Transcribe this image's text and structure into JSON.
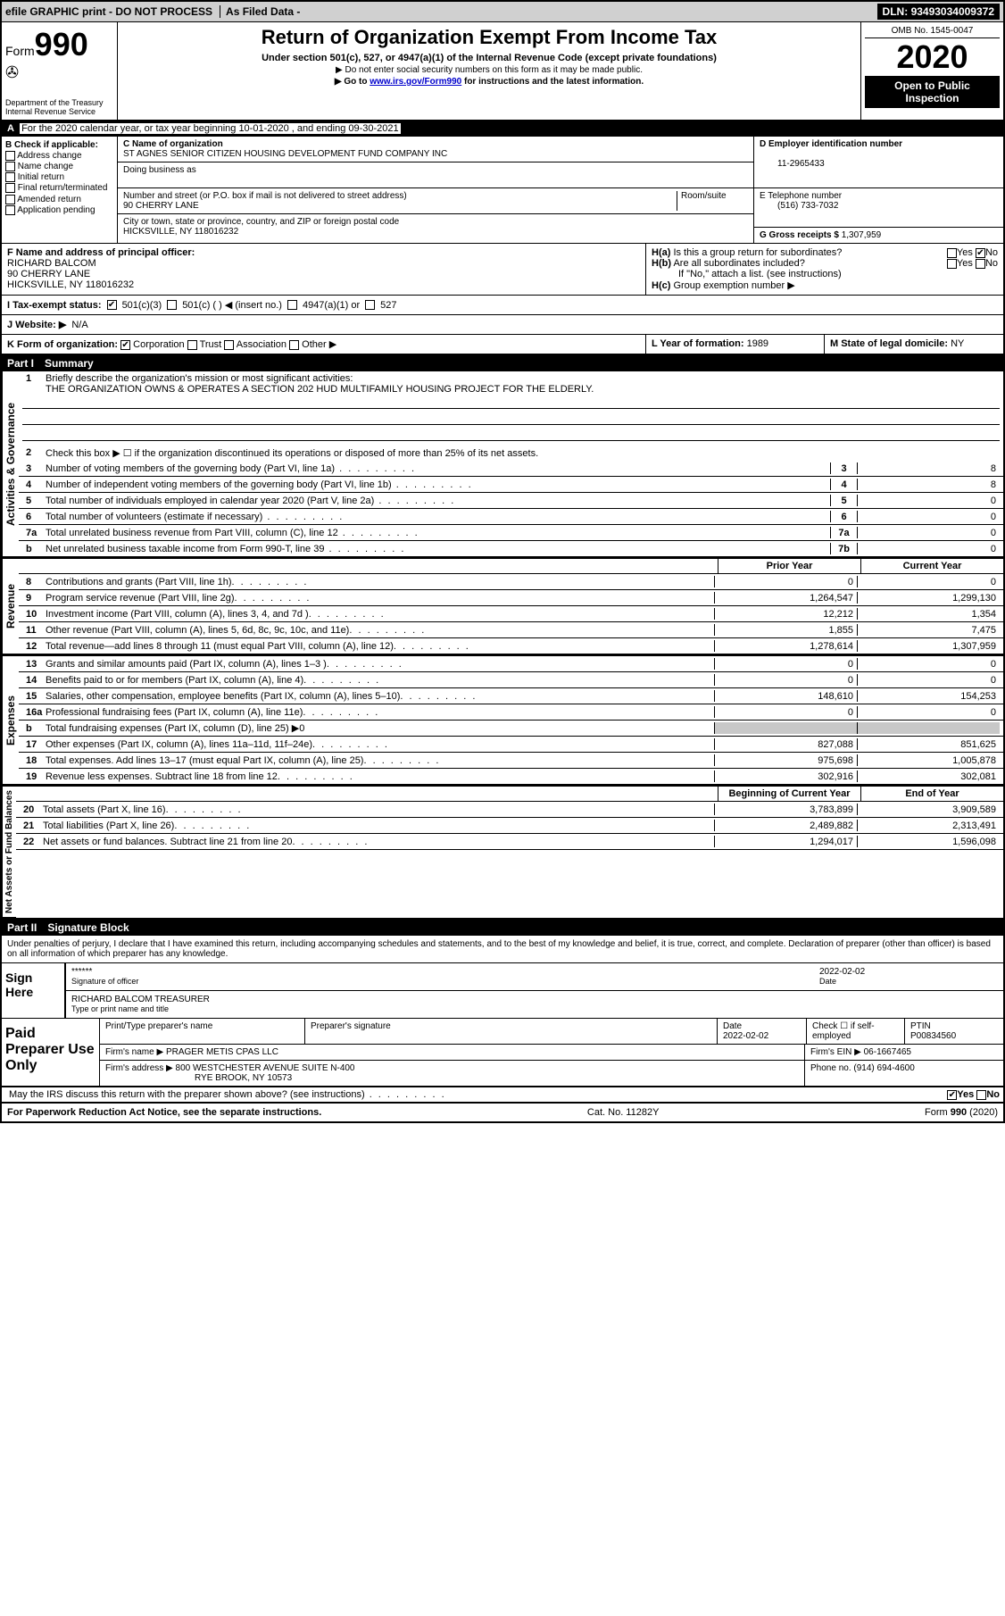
{
  "topbar": {
    "efile": "efile GRAPHIC print - DO NOT PROCESS",
    "asfiled": "As Filed Data -",
    "dln_label": "DLN:",
    "dln": "93493034009372"
  },
  "header": {
    "form_label": "Form",
    "form_no": "990",
    "dept": "Department of the Treasury\nInternal Revenue Service",
    "title": "Return of Organization Exempt From Income Tax",
    "sub": "Under section 501(c), 527, or 4947(a)(1) of the Internal Revenue Code (except private foundations)",
    "note1": "▶ Do not enter social security numbers on this form as it may be made public.",
    "note2": "▶ Go to www.irs.gov/Form990 for instructions and the latest information.",
    "omb": "OMB No. 1545-0047",
    "year": "2020",
    "open": "Open to Public Inspection"
  },
  "rowA": {
    "label": "A",
    "text": "For the 2020 calendar year, or tax year beginning 10-01-2020   , and ending 09-30-2021"
  },
  "B": {
    "label": "B Check if applicable:",
    "items": [
      "Address change",
      "Name change",
      "Initial return",
      "Final return/terminated",
      "Amended return",
      "Application pending"
    ]
  },
  "C": {
    "name_label": "C Name of organization",
    "name": "ST AGNES SENIOR CITIZEN HOUSING DEVELOPMENT FUND COMPANY INC",
    "dba_label": "Doing business as",
    "dba": "",
    "street_label": "Number and street (or P.O. box if mail is not delivered to street address)",
    "room_label": "Room/suite",
    "street": "90 CHERRY LANE",
    "city_label": "City or town, state or province, country, and ZIP or foreign postal code",
    "city": "HICKSVILLE, NY  118016232"
  },
  "D": {
    "label": "D Employer identification number",
    "val": "11-2965433"
  },
  "E": {
    "label": "E Telephone number",
    "val": "(516) 733-7032"
  },
  "G": {
    "label": "G Gross receipts $",
    "val": "1,307,959"
  },
  "F": {
    "label": "F   Name and address of principal officer:",
    "name": "RICHARD BALCOM",
    "street": "90 CHERRY LANE",
    "city": "HICKSVILLE, NY  118016232"
  },
  "H": {
    "a": "H(a)  Is this a group return for subordinates?",
    "a_yes": "Yes",
    "a_no": "No",
    "b": "H(b)  Are all subordinates included?",
    "b_yes": "Yes",
    "b_no": "No",
    "b_note": "If \"No,\" attach a list. (see instructions)",
    "c": "H(c)  Group exemption number ▶"
  },
  "I": {
    "label": "I   Tax-exempt status:",
    "o1": "501(c)(3)",
    "o2": "501(c) (  ) ◀ (insert no.)",
    "o3": "4947(a)(1) or",
    "o4": "527"
  },
  "J": {
    "label": "J   Website: ▶",
    "val": "N/A"
  },
  "K": {
    "label": "K Form of organization:",
    "o1": "Corporation",
    "o2": "Trust",
    "o3": "Association",
    "o4": "Other ▶"
  },
  "L": {
    "label": "L Year of formation:",
    "val": "1989"
  },
  "M": {
    "label": "M State of legal domicile:",
    "val": "NY"
  },
  "PartI": {
    "no": "Part I",
    "title": "Summary"
  },
  "summary": {
    "q1": "Briefly describe the organization's mission or most significant activities:",
    "q1_ans": "THE ORGANIZATION OWNS & OPERATES A SECTION 202 HUD MULTIFAMILY HOUSING PROJECT FOR THE ELDERLY.",
    "q2": "Check this box ▶ ☐ if the organization discontinued its operations or disposed of more than 25% of its net assets.",
    "lines_gov": [
      {
        "n": "3",
        "d": "Number of voting members of the governing body (Part VI, line 1a)",
        "box": "3",
        "v": "8"
      },
      {
        "n": "4",
        "d": "Number of independent voting members of the governing body (Part VI, line 1b)",
        "box": "4",
        "v": "8"
      },
      {
        "n": "5",
        "d": "Total number of individuals employed in calendar year 2020 (Part V, line 2a)",
        "box": "5",
        "v": "0"
      },
      {
        "n": "6",
        "d": "Total number of volunteers (estimate if necessary)",
        "box": "6",
        "v": "0"
      },
      {
        "n": "7a",
        "d": "Total unrelated business revenue from Part VIII, column (C), line 12",
        "box": "7a",
        "v": "0"
      },
      {
        "n": "b",
        "d": "Net unrelated business taxable income from Form 990-T, line 39",
        "box": "7b",
        "v": "0"
      }
    ],
    "col_prior": "Prior Year",
    "col_current": "Current Year",
    "revenue": [
      {
        "n": "8",
        "d": "Contributions and grants (Part VIII, line 1h)",
        "p": "0",
        "c": "0"
      },
      {
        "n": "9",
        "d": "Program service revenue (Part VIII, line 2g)",
        "p": "1,264,547",
        "c": "1,299,130"
      },
      {
        "n": "10",
        "d": "Investment income (Part VIII, column (A), lines 3, 4, and 7d )",
        "p": "12,212",
        "c": "1,354"
      },
      {
        "n": "11",
        "d": "Other revenue (Part VIII, column (A), lines 5, 6d, 8c, 9c, 10c, and 11e)",
        "p": "1,855",
        "c": "7,475"
      },
      {
        "n": "12",
        "d": "Total revenue—add lines 8 through 11 (must equal Part VIII, column (A), line 12)",
        "p": "1,278,614",
        "c": "1,307,959"
      }
    ],
    "expenses": [
      {
        "n": "13",
        "d": "Grants and similar amounts paid (Part IX, column (A), lines 1–3 )",
        "p": "0",
        "c": "0"
      },
      {
        "n": "14",
        "d": "Benefits paid to or for members (Part IX, column (A), line 4)",
        "p": "0",
        "c": "0"
      },
      {
        "n": "15",
        "d": "Salaries, other compensation, employee benefits (Part IX, column (A), lines 5–10)",
        "p": "148,610",
        "c": "154,253"
      },
      {
        "n": "16a",
        "d": "Professional fundraising fees (Part IX, column (A), line 11e)",
        "p": "0",
        "c": "0"
      },
      {
        "n": "b",
        "d": "Total fundraising expenses (Part IX, column (D), line 25) ▶0",
        "p": "",
        "c": "",
        "shade": true
      },
      {
        "n": "17",
        "d": "Other expenses (Part IX, column (A), lines 11a–11d, 11f–24e)",
        "p": "827,088",
        "c": "851,625"
      },
      {
        "n": "18",
        "d": "Total expenses. Add lines 13–17 (must equal Part IX, column (A), line 25)",
        "p": "975,698",
        "c": "1,005,878"
      },
      {
        "n": "19",
        "d": "Revenue less expenses. Subtract line 18 from line 12",
        "p": "302,916",
        "c": "302,081"
      }
    ],
    "col_begin": "Beginning of Current Year",
    "col_end": "End of Year",
    "netassets": [
      {
        "n": "20",
        "d": "Total assets (Part X, line 16)",
        "p": "3,783,899",
        "c": "3,909,589"
      },
      {
        "n": "21",
        "d": "Total liabilities (Part X, line 26)",
        "p": "2,489,882",
        "c": "2,313,491"
      },
      {
        "n": "22",
        "d": "Net assets or fund balances. Subtract line 21 from line 20",
        "p": "1,294,017",
        "c": "1,596,098"
      }
    ],
    "vlabels": {
      "gov": "Activities & Governance",
      "rev": "Revenue",
      "exp": "Expenses",
      "net": "Net Assets or Fund Balances"
    }
  },
  "PartII": {
    "no": "Part II",
    "title": "Signature Block"
  },
  "sig": {
    "perjury": "Under penalties of perjury, I declare that I have examined this return, including accompanying schedules and statements, and to the best of my knowledge and belief, it is true, correct, and complete. Declaration of preparer (other than officer) is based on all information of which preparer has any knowledge.",
    "sign_here": "Sign Here",
    "stars": "******",
    "sig_officer": "Signature of officer",
    "date_label": "Date",
    "date": "2022-02-02",
    "name_title": "RICHARD BALCOM TREASURER",
    "name_title_label": "Type or print name and title",
    "paid": "Paid Preparer Use Only",
    "h1": "Print/Type preparer's name",
    "h2": "Preparer's signature",
    "h3": "Date",
    "h3v": "2022-02-02",
    "h4": "Check ☐ if self-employed",
    "h5": "PTIN",
    "h5v": "P00834560",
    "firm_name_label": "Firm's name    ▶",
    "firm_name": "PRAGER METIS CPAS LLC",
    "firm_ein_label": "Firm's EIN ▶",
    "firm_ein": "06-1667465",
    "firm_addr_label": "Firm's address ▶",
    "firm_addr": "800 WESTCHESTER AVENUE SUITE N-400",
    "firm_addr2": "RYE BROOK, NY  10573",
    "phone_label": "Phone no.",
    "phone": "(914) 694-4600",
    "discuss": "May the IRS discuss this return with the preparer shown above? (see instructions)",
    "yes": "Yes",
    "no": "No"
  },
  "footer": {
    "left": "For Paperwork Reduction Act Notice, see the separate instructions.",
    "mid": "Cat. No. 11282Y",
    "right": "Form 990 (2020)"
  }
}
